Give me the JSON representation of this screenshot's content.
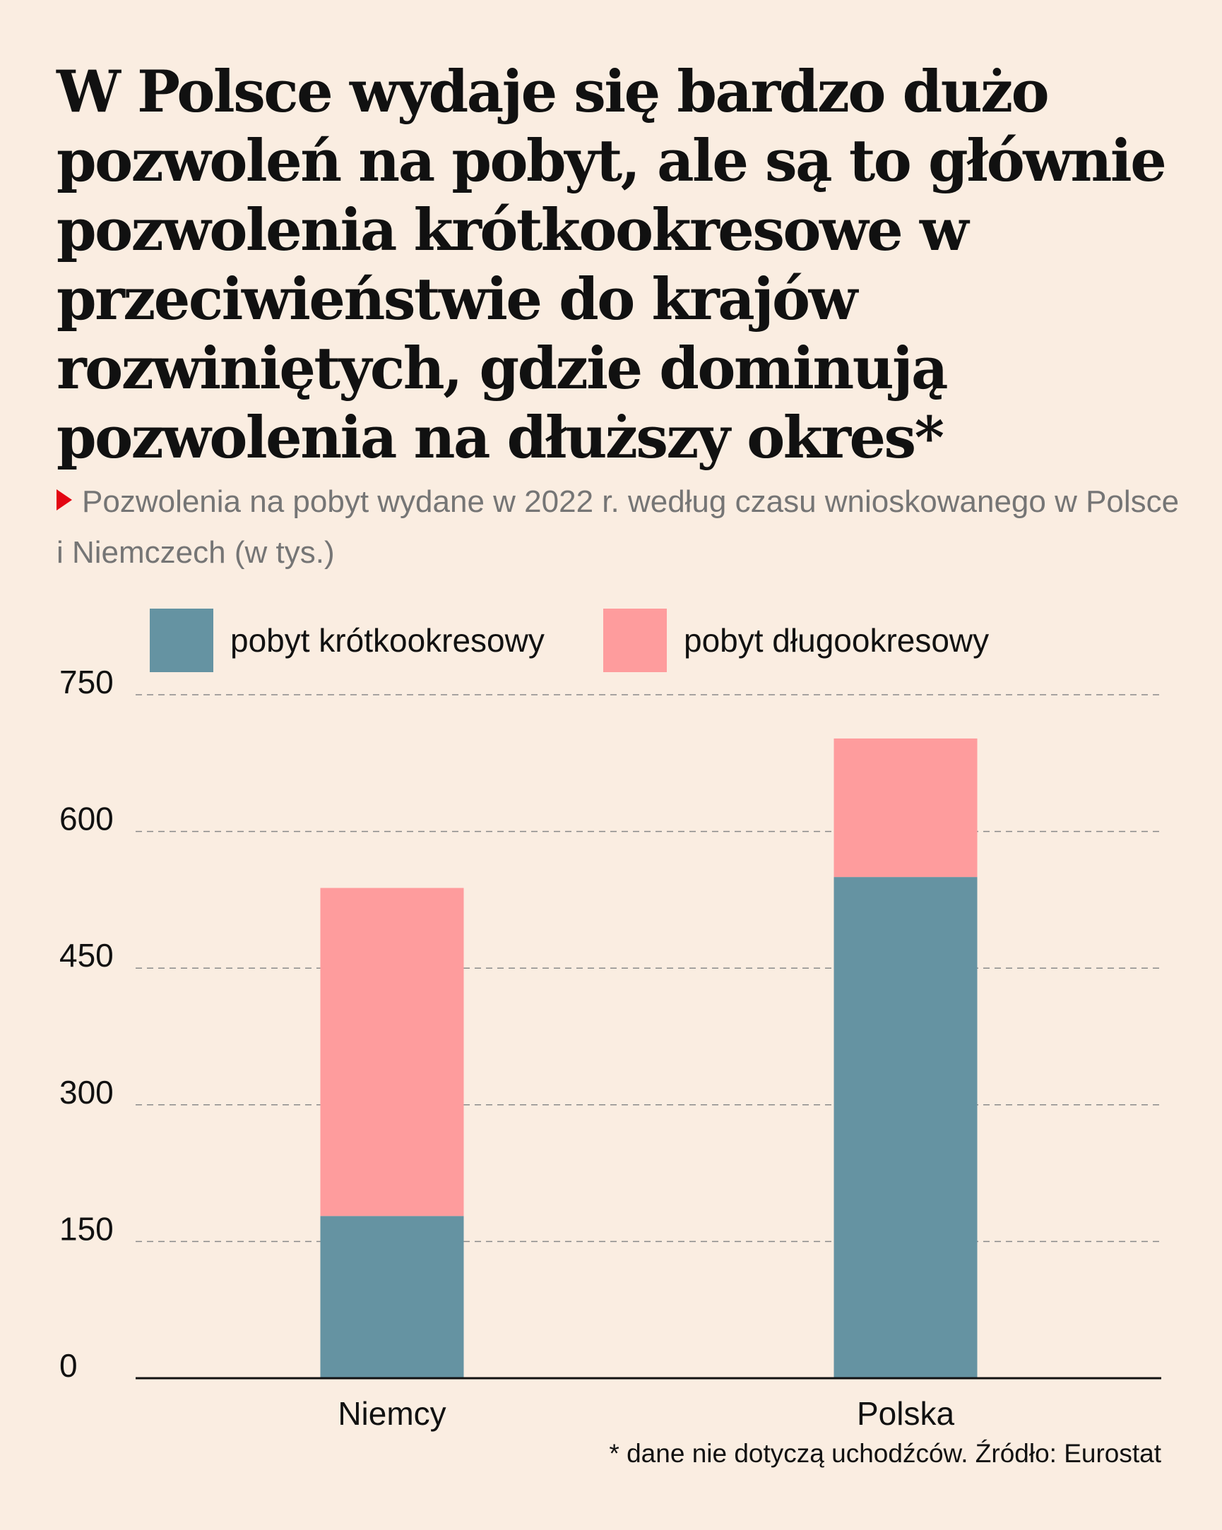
{
  "title": "W Polsce wydaje się bardzo dużo pozwoleń na pobyt, ale są to głównie pozwolenia krótkookresowe w przeciwieństwie do krajów rozwiniętych, gdzie dominują pozwolenia na dłuższy okres*",
  "subtitle": "Pozwolenia na pobyt wydane w 2022 r. według czasu wnioskowanego w Polsce i Niemczech (w tys.)",
  "footnote": "* dane nie dotyczą uchodźców. Źródło: Eurostat",
  "colors": {
    "background": "#faede1",
    "short_term": "#6593a2",
    "long_term": "#fe9c9d",
    "marker": "#e30613",
    "grid": "#8a8a8a"
  },
  "chart_data": {
    "type": "bar",
    "stacked": true,
    "categories": [
      "Niemcy",
      "Polska"
    ],
    "series": [
      {
        "name": "pobyt krótkookresowy",
        "values": [
          178,
          550
        ],
        "color": "#6593a2"
      },
      {
        "name": "pobyt długookresowy",
        "values": [
          360,
          152
        ],
        "color": "#fe9c9d"
      }
    ],
    "ylim": [
      0,
      750
    ],
    "yticks": [
      0,
      150,
      300,
      450,
      600,
      750
    ],
    "ytick_labels": [
      "0",
      "150",
      "300",
      "450",
      "600",
      "750"
    ],
    "grid": "dashed horizontal",
    "legend_position": "top"
  }
}
